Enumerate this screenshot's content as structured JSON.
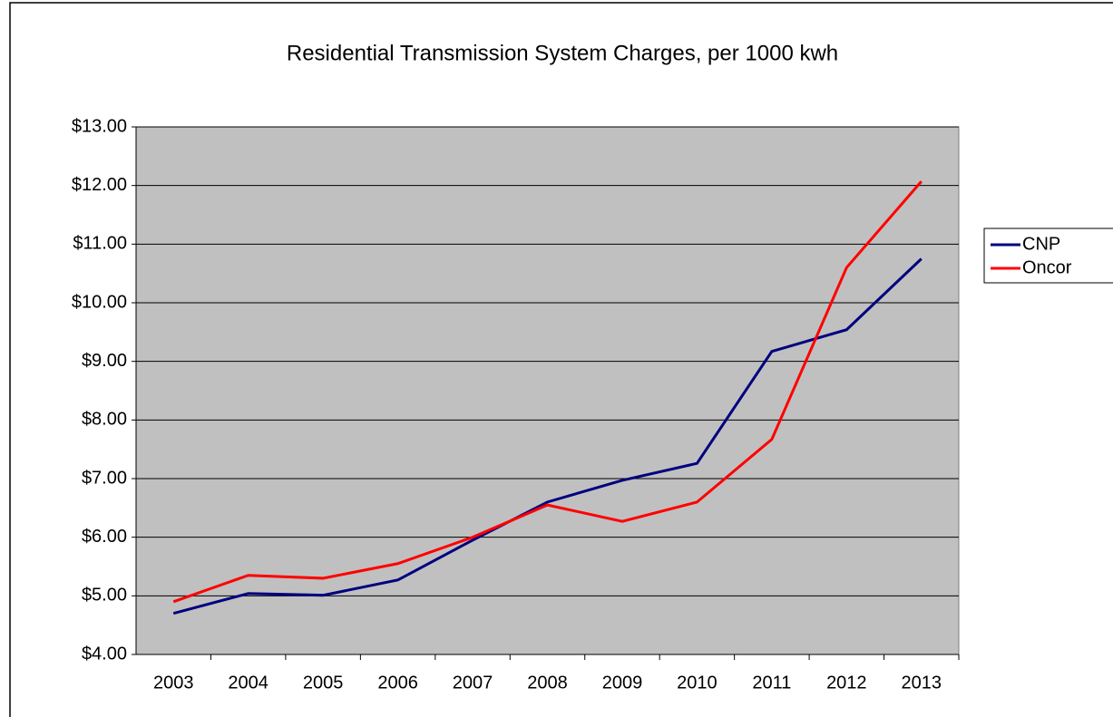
{
  "chart_data": {
    "type": "line",
    "title": "Residential Transmission System Charges, per 1000 kwh",
    "categories": [
      "2003",
      "2004",
      "2005",
      "2006",
      "2007",
      "2008",
      "2009",
      "2010",
      "2011",
      "2012",
      "2013"
    ],
    "series": [
      {
        "name": "CNP",
        "color": "#000080",
        "values": [
          4.7,
          5.04,
          5.01,
          5.27,
          5.95,
          6.6,
          6.97,
          7.26,
          9.17,
          9.54,
          10.75
        ]
      },
      {
        "name": "Oncor",
        "color": "#ff0000",
        "values": [
          4.9,
          5.35,
          5.3,
          5.55,
          6.0,
          6.55,
          6.27,
          6.6,
          7.67,
          10.6,
          12.07
        ]
      }
    ],
    "ylim": [
      4,
      13
    ],
    "yticks": [
      {
        "value": 4,
        "label": "$4.00"
      },
      {
        "value": 5,
        "label": "$5.00"
      },
      {
        "value": 6,
        "label": "$6.00"
      },
      {
        "value": 7,
        "label": "$7.00"
      },
      {
        "value": 8,
        "label": "$8.00"
      },
      {
        "value": 9,
        "label": "$9.00"
      },
      {
        "value": 10,
        "label": "$10.00"
      },
      {
        "value": 11,
        "label": "$11.00"
      },
      {
        "value": 12,
        "label": "$12.00"
      },
      {
        "value": 13,
        "label": "$13.00"
      }
    ],
    "grid": true,
    "legend": "right"
  }
}
